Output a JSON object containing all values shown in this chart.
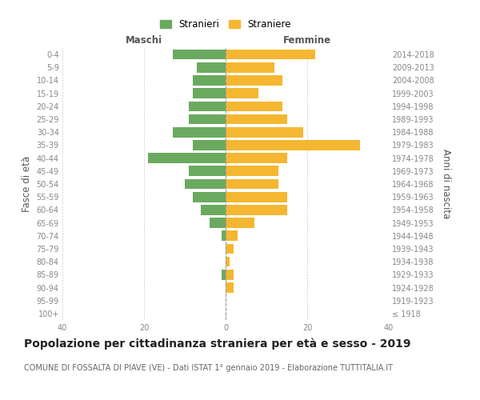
{
  "age_groups": [
    "100+",
    "95-99",
    "90-94",
    "85-89",
    "80-84",
    "75-79",
    "70-74",
    "65-69",
    "60-64",
    "55-59",
    "50-54",
    "45-49",
    "40-44",
    "35-39",
    "30-34",
    "25-29",
    "20-24",
    "15-19",
    "10-14",
    "5-9",
    "0-4"
  ],
  "birth_years": [
    "≤ 1918",
    "1919-1923",
    "1924-1928",
    "1929-1933",
    "1934-1938",
    "1939-1943",
    "1944-1948",
    "1949-1953",
    "1954-1958",
    "1959-1963",
    "1964-1968",
    "1969-1973",
    "1974-1978",
    "1979-1983",
    "1984-1988",
    "1989-1993",
    "1994-1998",
    "1999-2003",
    "2004-2008",
    "2009-2013",
    "2014-2018"
  ],
  "maschi": [
    0,
    0,
    0,
    1,
    0,
    0,
    1,
    4,
    6,
    8,
    10,
    9,
    19,
    8,
    13,
    9,
    9,
    8,
    8,
    7,
    13
  ],
  "femmine": [
    0,
    0,
    2,
    2,
    1,
    2,
    3,
    7,
    15,
    15,
    13,
    13,
    15,
    33,
    19,
    15,
    14,
    8,
    14,
    12,
    22
  ],
  "color_maschi": "#6aaa5f",
  "color_femmine": "#f5b731",
  "color_bg": "#ffffff",
  "color_grid": "#cccccc",
  "xlim": 40,
  "title": "Popolazione per cittadinanza straniera per età e sesso - 2019",
  "subtitle": "COMUNE DI FOSSALTA DI PIAVE (VE) - Dati ISTAT 1° gennaio 2019 - Elaborazione TUTTITALIA.IT",
  "xlabel_left": "Maschi",
  "xlabel_right": "Femmine",
  "ylabel_left": "Fasce di età",
  "ylabel_right": "Anni di nascita",
  "legend_maschi": "Stranieri",
  "legend_femmine": "Straniere",
  "title_fontsize": 10,
  "subtitle_fontsize": 7,
  "axis_label_fontsize": 8.5,
  "tick_fontsize": 7
}
